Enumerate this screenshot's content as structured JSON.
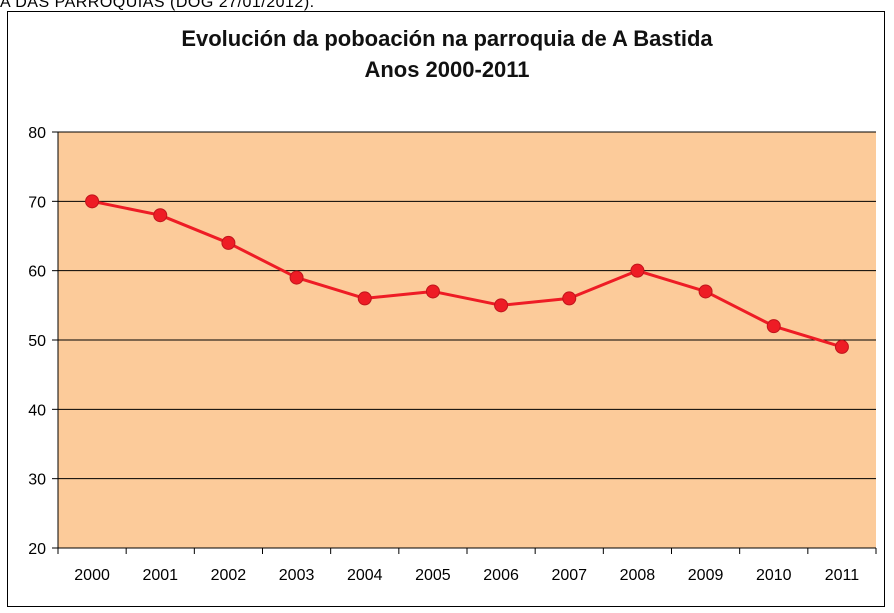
{
  "header_fragment": "A DAS PARROQUIAS (DOG 27/01/2012).",
  "chart_data": {
    "type": "line",
    "title": "Evolución da poboación na parroquia de A Bastida",
    "subtitle": "Anos 2000-2011",
    "xlabel": "",
    "ylabel": "",
    "categories": [
      "2000",
      "2001",
      "2002",
      "2003",
      "2004",
      "2005",
      "2006",
      "2007",
      "2008",
      "2009",
      "2010",
      "2011"
    ],
    "series": [
      {
        "values": [
          70,
          68,
          64,
          59,
          56,
          57,
          55,
          56,
          60,
          57,
          52,
          49
        ]
      }
    ],
    "ylim": [
      20,
      80
    ],
    "yticks": [
      "20",
      "30",
      "40",
      "50",
      "60",
      "70",
      "80"
    ],
    "grid": true,
    "legend": "none",
    "colors": {
      "plot_background": "#FCCB9A",
      "line": "#EE1C25",
      "marker": "#EE1C25",
      "gridline": "#000000"
    }
  }
}
